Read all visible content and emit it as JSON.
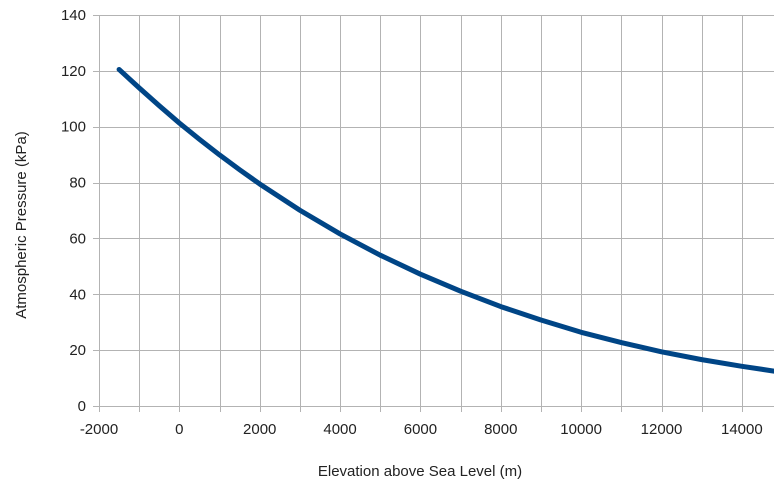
{
  "chart_data": {
    "type": "line",
    "title": "",
    "xlabel": "Elevation above Sea Level (m)",
    "ylabel": "Atmospheric Pressure (kPa)",
    "xlim": [
      -2000,
      14800
    ],
    "ylim": [
      0,
      140
    ],
    "x_ticks": [
      -2000,
      0,
      2000,
      4000,
      6000,
      8000,
      10000,
      12000,
      14000
    ],
    "y_ticks": [
      0,
      20,
      40,
      60,
      80,
      100,
      120,
      140
    ],
    "x_grid_step": 1000,
    "y_grid_step": 20,
    "grid": true,
    "legend": "none",
    "color": "#004586",
    "series": [
      {
        "x": [
          -1500,
          -1000,
          -500,
          0,
          500,
          1000,
          1500,
          2000,
          3000,
          4000,
          5000,
          6000,
          7000,
          8000,
          9000,
          10000,
          11000,
          12000,
          13000,
          14000,
          14800
        ],
        "y": [
          120.5,
          113.9,
          107.5,
          101.3,
          95.5,
          89.9,
          84.6,
          79.5,
          70.1,
          61.6,
          54.0,
          47.2,
          41.1,
          35.6,
          30.8,
          26.4,
          22.7,
          19.4,
          16.6,
          14.2,
          12.5
        ]
      }
    ]
  }
}
